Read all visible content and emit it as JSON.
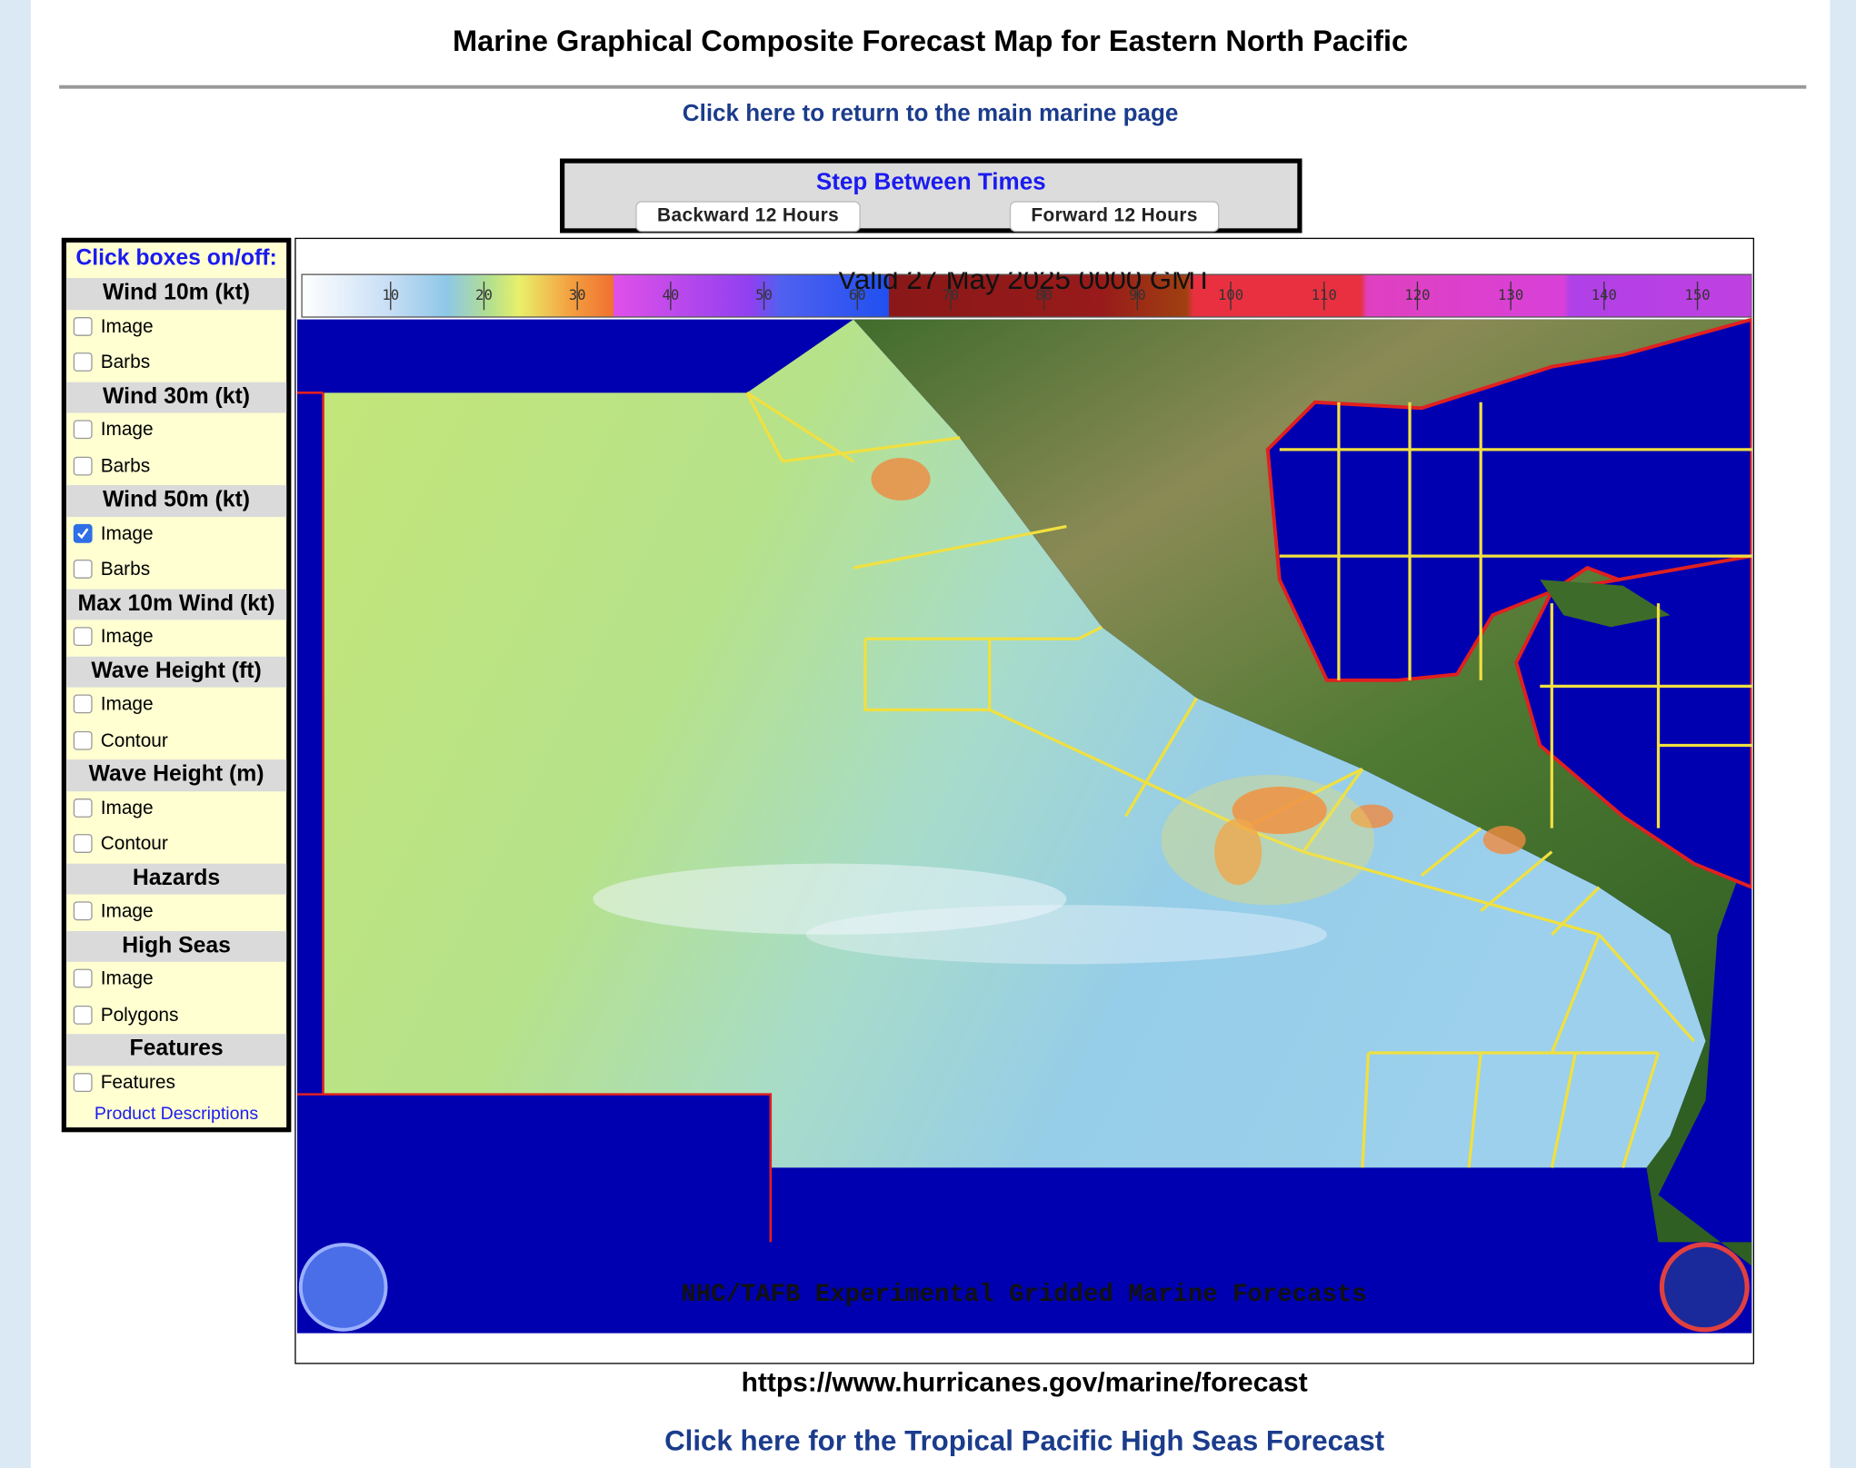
{
  "header": {
    "title": "Marine Graphical Composite Forecast Map for Eastern North Pacific"
  },
  "links": {
    "main_marine": "Click here to return to the main marine page",
    "high_seas": "Click here for the Tropical Pacific High Seas Forecast"
  },
  "step_controls": {
    "title": "Step Between Times",
    "backward": "Backward 12 Hours",
    "forward": "Forward 12 Hours"
  },
  "layer_panel": {
    "heading": "Click boxes on/off:",
    "sections": [
      {
        "title": "Wind 10m (kt)",
        "options": [
          {
            "label": "Image",
            "checked": false
          },
          {
            "label": "Barbs",
            "checked": false
          }
        ]
      },
      {
        "title": "Wind 30m (kt)",
        "options": [
          {
            "label": "Image",
            "checked": false
          },
          {
            "label": "Barbs",
            "checked": false
          }
        ]
      },
      {
        "title": "Wind 50m (kt)",
        "options": [
          {
            "label": "Image",
            "checked": true
          },
          {
            "label": "Barbs",
            "checked": false
          }
        ]
      },
      {
        "title": "Max 10m Wind (kt)",
        "options": [
          {
            "label": "Image",
            "checked": false
          }
        ]
      },
      {
        "title": "Wave Height (ft)",
        "options": [
          {
            "label": "Image",
            "checked": false
          },
          {
            "label": "Contour",
            "checked": false
          }
        ]
      },
      {
        "title": "Wave Height (m)",
        "options": [
          {
            "label": "Image",
            "checked": false
          },
          {
            "label": "Contour",
            "checked": false
          }
        ]
      },
      {
        "title": "Hazards",
        "options": [
          {
            "label": "Image",
            "checked": false
          }
        ]
      },
      {
        "title": "High Seas",
        "options": [
          {
            "label": "Image",
            "checked": false
          },
          {
            "label": "Polygons",
            "checked": false
          }
        ]
      },
      {
        "title": "Features",
        "options": [
          {
            "label": "Features",
            "checked": false
          }
        ]
      }
    ],
    "footer_link": "Product Descriptions"
  },
  "map": {
    "valid_time": "Valid 27 May 2025 0000 GMT",
    "scale_labels": [
      "10",
      "20",
      "30",
      "40",
      "50",
      "60",
      "70",
      "80",
      "90",
      "100",
      "110",
      "120",
      "130",
      "140",
      "150"
    ],
    "credit": "NHC/TAFB Experimental Gridded Marine Forecasts"
  },
  "url": "https://www.hurricanes.gov/marine/forecast"
}
